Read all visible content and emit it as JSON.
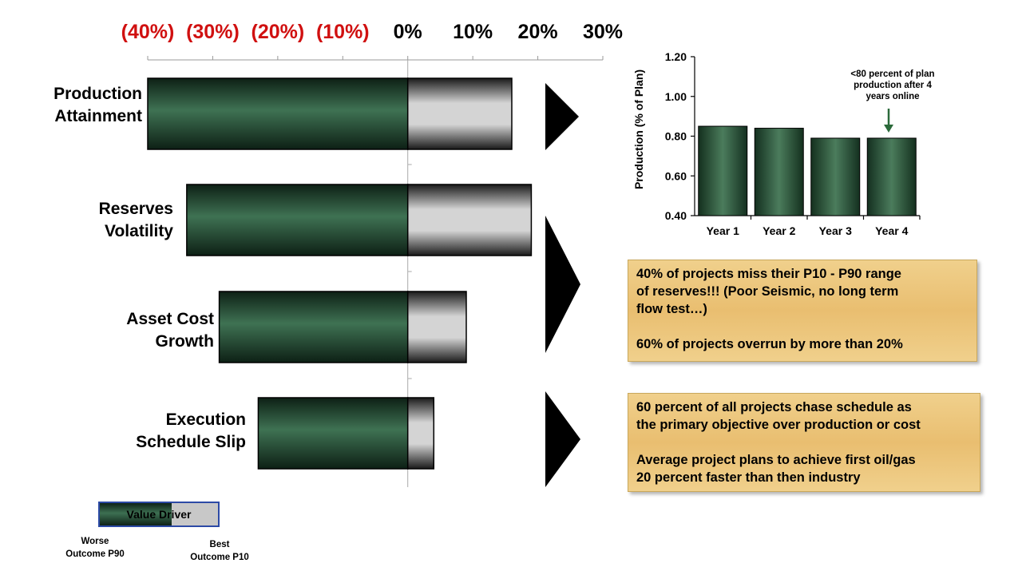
{
  "colors": {
    "negative_tick": "#d01010",
    "positive_tick": "#000000",
    "worse_bar": "#2f5e40",
    "best_bar": "#c8c8c8",
    "callout_bg": "#e9be70",
    "legend_border": "#2c4aa6"
  },
  "chart_data": [
    {
      "type": "bar",
      "orientation": "horizontal",
      "x_ticks": [
        "(40%)",
        "(30%)",
        "(20%)",
        "(10%)",
        "0%",
        "10%",
        "20%",
        "30%"
      ],
      "xlim": [
        -40,
        30
      ],
      "categories": [
        "Production Attainment",
        "Reserves Volatility",
        "Asset Cost Growth",
        "Execution Schedule Slip"
      ],
      "category_lines": [
        [
          "Production",
          "Attainment"
        ],
        [
          "Reserves",
          "Volatility"
        ],
        [
          "Asset Cost",
          "Growth"
        ],
        [
          "Execution",
          "Schedule Slip"
        ]
      ],
      "series": [
        {
          "name": "Worse Outcome P90",
          "values": [
            -40,
            -34,
            -29,
            -23
          ]
        },
        {
          "name": "Best Outcome P10",
          "values": [
            16,
            19,
            9,
            4
          ]
        }
      ]
    },
    {
      "type": "bar",
      "categories": [
        "Year 1",
        "Year 2",
        "Year 3",
        "Year 4"
      ],
      "values": [
        0.85,
        0.84,
        0.79,
        0.79
      ],
      "ylabel": "Production (% of Plan)",
      "ylim": [
        0.4,
        1.2
      ],
      "y_ticks": [
        "0.40",
        "0.60",
        "0.80",
        "1.00",
        "1.20"
      ],
      "annotation": [
        "<80 percent of plan",
        "production after 4",
        "years online"
      ]
    }
  ],
  "callouts": [
    {
      "p1": [
        "40% of projects miss their P10 - P90 range",
        "of reserves!!! (Poor Seismic, no long term",
        "flow test…)"
      ],
      "p2": [
        "60% of projects overrun by more than 20%"
      ]
    },
    {
      "p1": [
        "60 percent of all projects chase schedule as",
        "the primary objective over production or cost"
      ],
      "p2": [
        "Average project plans to achieve first oil/gas",
        "20 percent faster than then industry"
      ]
    }
  ],
  "legend": {
    "label": "Value Driver",
    "worse": [
      "Worse",
      "Outcome P90"
    ],
    "best": [
      "Best",
      "Outcome P10"
    ]
  }
}
